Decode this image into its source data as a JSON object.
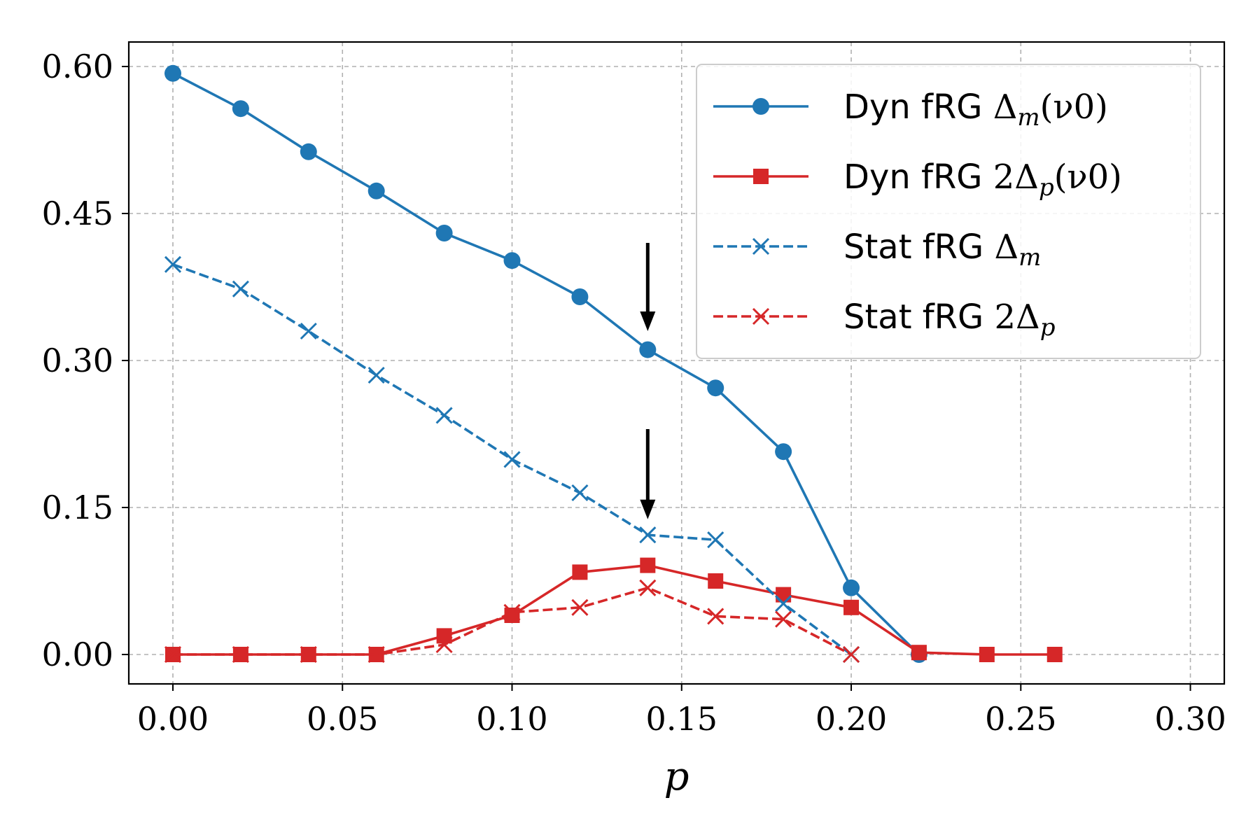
{
  "chart_data": {
    "type": "line",
    "title": "",
    "xlabel": "p",
    "ylabel": "",
    "xlim": [
      -0.013,
      0.31
    ],
    "ylim": [
      -0.03,
      0.625
    ],
    "xticks": [
      0.0,
      0.05,
      0.1,
      0.15,
      0.2,
      0.25,
      0.3
    ],
    "yticks": [
      0.0,
      0.15,
      0.3,
      0.45,
      0.6
    ],
    "xtick_labels": [
      "0.00",
      "0.05",
      "0.10",
      "0.15",
      "0.20",
      "0.25",
      "0.30"
    ],
    "ytick_labels": [
      "0.00",
      "0.15",
      "0.30",
      "0.45",
      "0.60"
    ],
    "grid": true,
    "legend_position": "top-right",
    "x": [
      0.0,
      0.02,
      0.04,
      0.06,
      0.08,
      0.1,
      0.12,
      0.14,
      0.16,
      0.18,
      0.2,
      0.22,
      0.24,
      0.26
    ],
    "series": [
      {
        "name": "Dyn fRG Δm(ν0)",
        "legend_prefix": "Dyn fRG ",
        "legend_math": "Δ",
        "legend_sub": "m",
        "legend_suffix": "(ν0)",
        "color": "#1f77b4",
        "marker": "circle",
        "linestyle": "solid",
        "x": [
          0.0,
          0.02,
          0.04,
          0.06,
          0.08,
          0.1,
          0.12,
          0.14,
          0.16,
          0.18,
          0.2,
          0.22
        ],
        "values": [
          0.593,
          0.557,
          0.513,
          0.473,
          0.43,
          0.402,
          0.365,
          0.311,
          0.272,
          0.207,
          0.068,
          0.0
        ]
      },
      {
        "name": "Dyn fRG 2Δp(ν0)",
        "legend_prefix": "Dyn fRG ",
        "legend_math": "2Δ",
        "legend_sub": "p",
        "legend_suffix": "(ν0)",
        "color": "#d62728",
        "marker": "square",
        "linestyle": "solid",
        "x": [
          0.0,
          0.02,
          0.04,
          0.06,
          0.08,
          0.1,
          0.12,
          0.14,
          0.16,
          0.18,
          0.2,
          0.22,
          0.24,
          0.26
        ],
        "values": [
          0.0,
          0.0,
          0.0,
          0.0,
          0.019,
          0.04,
          0.084,
          0.091,
          0.075,
          0.061,
          0.048,
          0.002,
          0.0,
          0.0
        ]
      },
      {
        "name": "Stat fRG Δm",
        "legend_prefix": "Stat fRG ",
        "legend_math": "Δ",
        "legend_sub": "m",
        "legend_suffix": "",
        "color": "#1f77b4",
        "marker": "x",
        "linestyle": "dashed",
        "x": [
          0.0,
          0.02,
          0.04,
          0.06,
          0.08,
          0.1,
          0.12,
          0.14,
          0.16,
          0.18,
          0.2
        ],
        "values": [
          0.398,
          0.373,
          0.33,
          0.285,
          0.244,
          0.199,
          0.165,
          0.122,
          0.117,
          0.052,
          0.0
        ]
      },
      {
        "name": "Stat fRG 2Δp",
        "legend_prefix": "Stat fRG ",
        "legend_math": "2Δ",
        "legend_sub": "p",
        "legend_suffix": "",
        "color": "#d62728",
        "marker": "x",
        "linestyle": "dashed",
        "x": [
          0.0,
          0.02,
          0.04,
          0.06,
          0.08,
          0.1,
          0.12,
          0.14,
          0.16,
          0.18,
          0.2
        ],
        "values": [
          0.0,
          0.0,
          0.0,
          0.0,
          0.01,
          0.043,
          0.048,
          0.068,
          0.039,
          0.036,
          0.0
        ]
      }
    ],
    "annotations": [
      {
        "type": "arrow",
        "x": 0.14,
        "y_start": 0.42,
        "y_end": 0.33,
        "color": "#000000"
      },
      {
        "type": "arrow",
        "x": 0.14,
        "y_start": 0.23,
        "y_end": 0.138,
        "color": "#000000"
      }
    ]
  }
}
